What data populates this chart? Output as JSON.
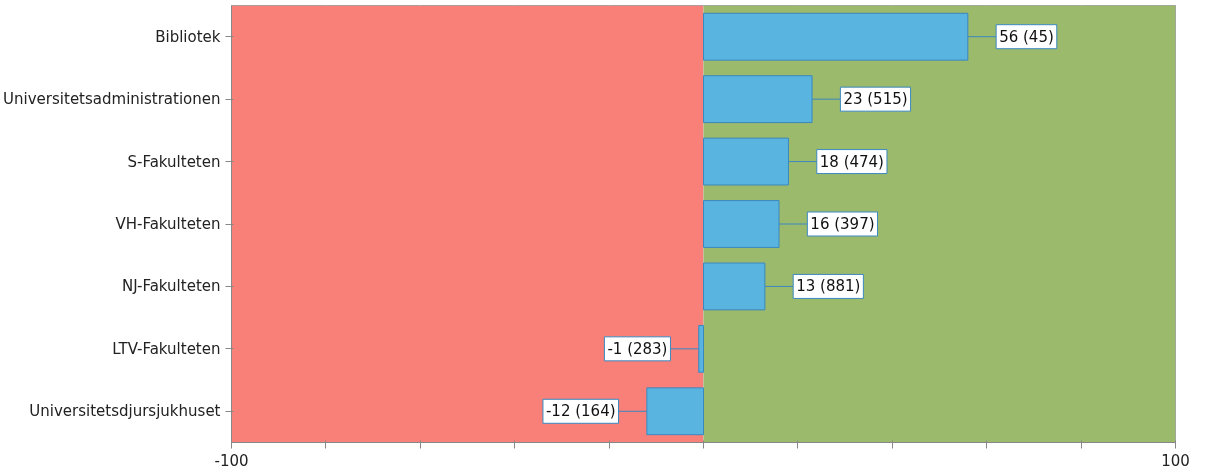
{
  "chart_data": {
    "type": "bar",
    "orientation": "horizontal",
    "categories": [
      "Bibliotek",
      "Universitetsadministrationen",
      "S-Fakulteten",
      "VH-Fakulteten",
      "NJ-Fakulteten",
      "LTV-Fakulteten",
      "Universitetsdjursjukhuset"
    ],
    "values": [
      56,
      23,
      18,
      16,
      13,
      -1,
      -12
    ],
    "value_labels": [
      "56 (45)",
      "23 (515)",
      "18 (474)",
      "16 (397)",
      "13 (881)",
      "-1 (283)",
      "-12 (164)"
    ],
    "color": "#5ab4e0",
    "xlim": [
      -100,
      100
    ],
    "xticks": [
      -100,
      {
        "value": -80,
        "label": null
      },
      {
        "value": -60,
        "label": null
      },
      {
        "value": -40,
        "label": null
      },
      {
        "value": -20,
        "label": null
      },
      {
        "value": 0,
        "label": null
      },
      {
        "value": 20,
        "label": null
      },
      {
        "value": 40,
        "label": null
      },
      {
        "value": 60,
        "label": null
      },
      {
        "value": 80,
        "label": null
      },
      100
    ],
    "grid": "x",
    "bands": [
      {
        "axis": "x",
        "from": -100,
        "to": 0,
        "color": "#f88078"
      },
      {
        "axis": "x",
        "from": 0,
        "to": 100,
        "color": "#9cba6c"
      }
    ]
  }
}
